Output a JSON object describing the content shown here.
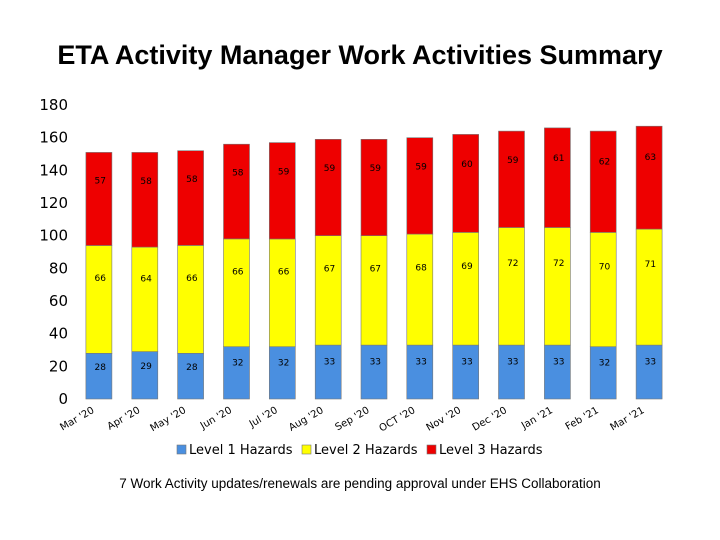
{
  "chart_data": {
    "type": "bar",
    "stacked": true,
    "title": "ETA Activity Manager Work Activities Summary",
    "xlabel": "",
    "ylabel": "",
    "ylim": [
      0,
      180
    ],
    "yticks": [
      0,
      20,
      40,
      60,
      80,
      100,
      120,
      140,
      160,
      180
    ],
    "grid": false,
    "legend": "bottom",
    "categories": [
      "Mar '20",
      "Apr '20",
      "May '20",
      "Jun '20",
      "Jul '20",
      "Aug '20",
      "Sep '20",
      "OCT '20",
      "Nov '20",
      "Dec '20",
      "Jan '21",
      "Feb '21",
      "Mar '21"
    ],
    "series": [
      {
        "name": "Level 1 Hazards",
        "color": "#4a8fe0",
        "values": [
          28,
          29,
          28,
          32,
          32,
          33,
          33,
          33,
          33,
          33,
          33,
          32,
          33
        ]
      },
      {
        "name": "Level 2 Hazards",
        "color": "#ffff00",
        "values": [
          66,
          64,
          66,
          66,
          66,
          67,
          67,
          68,
          69,
          72,
          72,
          70,
          71
        ]
      },
      {
        "name": "Level 3 Hazards",
        "color": "#ee0000",
        "values": [
          57,
          58,
          58,
          58,
          59,
          59,
          59,
          59,
          60,
          59,
          61,
          62,
          63
        ]
      }
    ]
  },
  "footnote": "7 Work Activity updates/renewals are pending approval under EHS Collaboration"
}
